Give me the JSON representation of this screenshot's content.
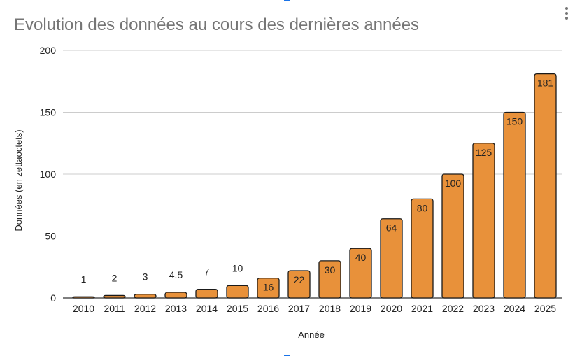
{
  "chart_data": {
    "type": "bar",
    "title": "Evolution des données au cours des dernières années",
    "xlabel": "Année",
    "ylabel": "Données (en zettaoctets)",
    "categories": [
      "2010",
      "2011",
      "2012",
      "2013",
      "2014",
      "2015",
      "2016",
      "2017",
      "2018",
      "2019",
      "2020",
      "2021",
      "2022",
      "2023",
      "2024",
      "2025"
    ],
    "values": [
      1,
      2,
      3,
      4.5,
      7,
      10,
      16,
      22,
      30,
      40,
      64,
      80,
      100,
      125,
      150,
      181
    ],
    "data_labels": [
      "1",
      "2",
      "3",
      "4.5",
      "7",
      "10",
      "16",
      "22",
      "30",
      "40",
      "64",
      "80",
      "100",
      "125",
      "150",
      "181"
    ],
    "ylim": [
      0,
      200
    ],
    "yticks": [
      0,
      50,
      100,
      150,
      200
    ],
    "ytick_labels": [
      "0",
      "50",
      "100",
      "150",
      "200"
    ],
    "grid": true,
    "legend": "none",
    "colors": {
      "bar": "#e8913a",
      "bar_outline": "#1a1a1a",
      "grid": "#cccccc",
      "title": "#757575"
    }
  },
  "menu": {
    "icon": "more-vert-icon"
  }
}
